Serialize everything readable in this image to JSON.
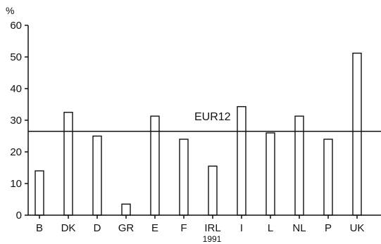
{
  "chart_data": {
    "type": "bar",
    "ylabel": "%",
    "xlabel": "1991",
    "categories": [
      "B",
      "DK",
      "D",
      "GR",
      "E",
      "F",
      "IRL",
      "I",
      "L",
      "NL",
      "P",
      "UK"
    ],
    "values": [
      14,
      32.5,
      25,
      3.5,
      31.3,
      24,
      15.5,
      34.3,
      26,
      31.3,
      24,
      51.2
    ],
    "ylim": [
      0,
      60
    ],
    "yticks": [
      0,
      10,
      20,
      30,
      40,
      50,
      60
    ],
    "grid": false,
    "reference_line": {
      "label": "EUR12",
      "value": 26.5
    },
    "colors": {
      "axis": "#111111",
      "bar_fill": "#ffffff",
      "bar_stroke": "#111111"
    }
  }
}
